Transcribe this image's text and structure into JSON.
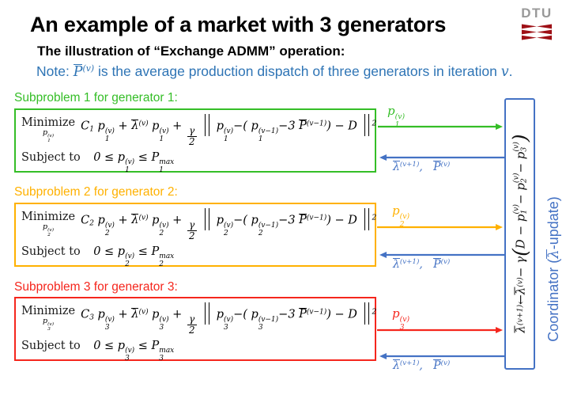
{
  "slide": {
    "title": "An example of a market with 3 generators",
    "subtitle": "The illustration of “Exchange ADMM” operation:",
    "note": "Note: *{@{P}^{(v)}} is the average production dispatch of three generators in iteration *{v}.",
    "logo_text": "DTU"
  },
  "colors": {
    "green": "#35BE27",
    "orange": "#FFB100",
    "red": "#F5261D",
    "blue": "#4472C4",
    "note_blue": "#2E74B5",
    "logo_red": "#9E1016",
    "logo_gray": "#999999"
  },
  "subproblems": [
    {
      "label": "Subproblem 1 for generator 1:",
      "minimize_label": "Minimize",
      "minimize_under": "p_{1}^{(v)}",
      "objective": "C_{1} p_{1}^{(v)} + @{λ}^{(v)} p_{1}^{(v)} + &{γ|2} !{‖} p_{1}^{(v)}−( p_{1}^{(v−1)}−3 @{P}^{(v−1)}) − D !{‖}^{2}",
      "subject_label": "Subject to",
      "constraint": "0 ≤ p_{1}^{(v)} ≤ P_{1}^{max}",
      "send_label": "p_{1}^{(v)}",
      "return_label": "@{λ}^{(v+1)},   @{P}^{(v)}"
    },
    {
      "label": "Subproblem 2 for generator 2:",
      "minimize_label": "Minimize",
      "minimize_under": "p_{2}^{(v)}",
      "objective": "C_{2} p_{2}^{(v)} + @{λ}^{(v)} p_{2}^{(v)} + &{γ|2} !{‖} p_{2}^{(v)}−( p_{2}^{(v−1)}−3 @{P}^{(v−1)}) − D !{‖}^{2}",
      "subject_label": "Subject to",
      "constraint": "0 ≤ p_{2}^{(v)} ≤ P_{2}^{max}",
      "send_label": "p_{2}^{(v)}",
      "return_label": "@{λ}^{(v+1)},   @{P}^{(v)}"
    },
    {
      "label": "Subproblem 3 for generator 3:",
      "minimize_label": "Minimize",
      "minimize_under": "p_{3}^{(v)}",
      "objective": "C_{3} p_{3}^{(v)} + @{λ}^{(v)} p_{3}^{(v)} + &{γ|2} !{‖} p_{3}^{(v)}−( p_{3}^{(v−1)}−3 @{P}^{(v−1)}) − D !{‖}^{2}",
      "subject_label": "Subject to",
      "constraint": "0 ≤ p_{3}^{(v)} ≤ P_{3}^{max}",
      "send_label": "p_{3}^{(v)}",
      "return_label": "@{λ}^{(v+1)},   @{P}^{(v)}"
    }
  ],
  "coordinator": {
    "update_rule": "@{λ}^{(v+1)} ← @{λ}^{(v)} − γ !{(} D − p_{1}^{(v)} − p_{2}^{(v)} − p_{3}^{(v)} !{)}",
    "label": "Coordinator (*{@{λ}}-update)"
  }
}
